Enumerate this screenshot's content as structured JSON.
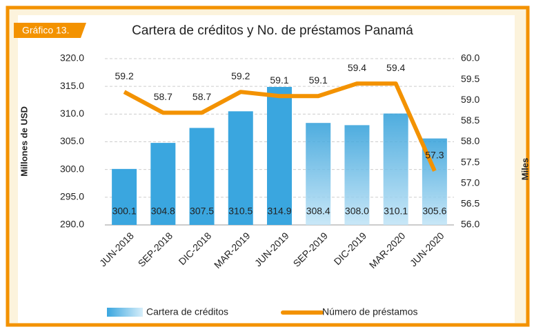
{
  "badge": "Gráfico 13.",
  "chart_data": {
    "type": "bar-line",
    "title": "Cartera de créditos y No. de préstamos Panamá",
    "ylabel": "Millones de USD",
    "y2label": "Miles",
    "categories": [
      "JUN-2018",
      "SEP-2018",
      "DIC-2018",
      "MAR-2019",
      "JUN-2019",
      "SEP-2019",
      "DIC-2019",
      "MAR-2020",
      "JUN-2020"
    ],
    "series": [
      {
        "name": "Cartera de créditos",
        "type": "bar",
        "color": "#3aa6df",
        "axis": "y",
        "values": [
          300.1,
          304.8,
          307.5,
          310.5,
          314.9,
          308.4,
          308.0,
          310.1,
          305.6
        ],
        "value_labels": [
          "300.1",
          "304.8",
          "307.5",
          "310.5",
          "314.9",
          "308.4",
          "308.0",
          "310.1",
          "305.6"
        ]
      },
      {
        "name": "Número de préstamos",
        "type": "line",
        "color": "#f39200",
        "axis": "y2",
        "values": [
          59.2,
          58.7,
          58.7,
          59.2,
          59.1,
          59.1,
          59.4,
          59.4,
          57.3
        ]
      }
    ],
    "ylim": [
      290,
      320
    ],
    "yticks": [
      {
        "value": 290,
        "label": "290.0"
      },
      {
        "value": 295,
        "label": "295.0"
      },
      {
        "value": 300,
        "label": "300.0"
      },
      {
        "value": 305,
        "label": "305.0"
      },
      {
        "value": 310,
        "label": "310.0"
      },
      {
        "value": 315,
        "label": "315.0"
      },
      {
        "value": 320,
        "label": "320.0"
      }
    ],
    "y2lim": [
      56,
      60
    ],
    "y2ticks": [
      {
        "value": 56,
        "label": "56.0"
      },
      56.5,
      {
        "value": 57,
        "label": "57.0"
      },
      57.5,
      {
        "value": 58,
        "label": "58.0"
      },
      58.5,
      {
        "value": 59,
        "label": "59.0"
      },
      59.5,
      {
        "value": 60,
        "label": "60.0"
      }
    ],
    "grid": true,
    "legend": "bottom"
  }
}
